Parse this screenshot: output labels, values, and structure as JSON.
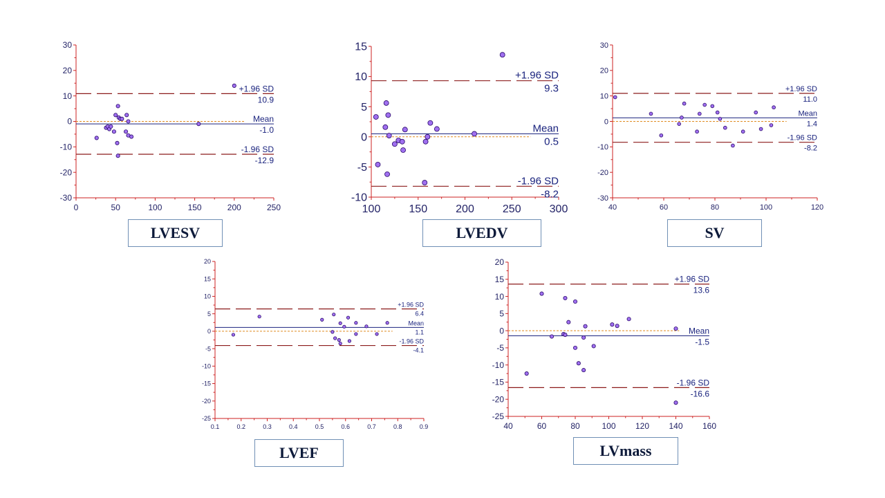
{
  "colors": {
    "axis": "#cc2222",
    "tick_label": "#222266",
    "mean_line": "#1a237e",
    "sd_line": "#8b1a1a",
    "zero_line": "#e08a1e",
    "point_fill": "#a070f0",
    "point_stroke": "#2a0a6a",
    "caption_border": "#6f8fb5"
  },
  "captions": {
    "lvesv": "LVESV",
    "lvedv": "LVEDV",
    "sv": "SV",
    "lvef": "LVEF",
    "lvmass": "LVmass"
  },
  "chart_data": [
    {
      "id": "lvesv",
      "type": "scatter",
      "title": "LVESV",
      "xlim": [
        0,
        250
      ],
      "ylim": [
        -30,
        30
      ],
      "xticks": [
        "0",
        "50",
        "100",
        "150",
        "200",
        "250"
      ],
      "yticks": [
        "-30",
        "-20",
        "-10",
        "0",
        "10",
        "20",
        "30"
      ],
      "reference_lines": {
        "upper": {
          "label": "+1.96 SD",
          "value": 10.9,
          "value_text": "10.9"
        },
        "mean": {
          "label": "Mean",
          "value": -1.0,
          "value_text": "-1.0"
        },
        "lower": {
          "label": "-1.96 SD",
          "value": -12.9,
          "value_text": "-12.9"
        },
        "zero": 0
      },
      "points": [
        {
          "x": 26,
          "y": -6.5
        },
        {
          "x": 38,
          "y": -2.5
        },
        {
          "x": 40,
          "y": -2
        },
        {
          "x": 42,
          "y": -3
        },
        {
          "x": 44,
          "y": -2
        },
        {
          "x": 48,
          "y": -4
        },
        {
          "x": 50,
          "y": 2.5
        },
        {
          "x": 52,
          "y": -8.5
        },
        {
          "x": 53,
          "y": 6
        },
        {
          "x": 54,
          "y": 1.5
        },
        {
          "x": 56,
          "y": 1
        },
        {
          "x": 58,
          "y": 1
        },
        {
          "x": 63,
          "y": -4
        },
        {
          "x": 64,
          "y": 2.5
        },
        {
          "x": 66,
          "y": -5.5
        },
        {
          "x": 66,
          "y": 0
        },
        {
          "x": 70,
          "y": -6
        },
        {
          "x": 53,
          "y": -13.5
        },
        {
          "x": 155,
          "y": -1
        },
        {
          "x": 200,
          "y": 14
        }
      ]
    },
    {
      "id": "lvedv",
      "type": "scatter",
      "title": "LVEDV",
      "xlim": [
        100,
        300
      ],
      "ylim": [
        -10,
        15
      ],
      "xticks": [
        "100",
        "150",
        "200",
        "250",
        "300"
      ],
      "yticks": [
        "-10",
        "-5",
        "0",
        "5",
        "10",
        "15"
      ],
      "reference_lines": {
        "upper": {
          "label": "+1.96 SD",
          "value": 9.3,
          "value_text": "9.3"
        },
        "mean": {
          "label": "Mean",
          "value": 0.5,
          "value_text": "0.5"
        },
        "lower": {
          "label": "-1.96 SD",
          "value": -8.2,
          "value_text": "-8.2"
        },
        "zero": 0
      },
      "points": [
        {
          "x": 105,
          "y": 3.3
        },
        {
          "x": 107,
          "y": -4.6
        },
        {
          "x": 115,
          "y": 1.6
        },
        {
          "x": 116,
          "y": 5.6
        },
        {
          "x": 117,
          "y": -6.2
        },
        {
          "x": 118,
          "y": 3.6
        },
        {
          "x": 119,
          "y": 0.2
        },
        {
          "x": 125,
          "y": -1.2
        },
        {
          "x": 129,
          "y": -0.6
        },
        {
          "x": 133,
          "y": -0.8
        },
        {
          "x": 134,
          "y": -2.2
        },
        {
          "x": 136,
          "y": 1.2
        },
        {
          "x": 157,
          "y": -7.6
        },
        {
          "x": 158,
          "y": -0.8
        },
        {
          "x": 160,
          "y": 0
        },
        {
          "x": 163,
          "y": 2.3
        },
        {
          "x": 170,
          "y": 1.3
        },
        {
          "x": 210,
          "y": 0.5
        },
        {
          "x": 240,
          "y": 13.6
        }
      ]
    },
    {
      "id": "sv",
      "type": "scatter",
      "title": "SV",
      "xlim": [
        40,
        120
      ],
      "ylim": [
        -30,
        30
      ],
      "xticks": [
        "40",
        "60",
        "80",
        "100",
        "120"
      ],
      "yticks": [
        "-30",
        "-20",
        "-10",
        "0",
        "10",
        "20",
        "30"
      ],
      "reference_lines": {
        "upper": {
          "label": "+1.96 SD",
          "value": 11.0,
          "value_text": "11.0"
        },
        "mean": {
          "label": "Mean",
          "value": 1.4,
          "value_text": "1.4"
        },
        "lower": {
          "label": "-1.96 SD",
          "value": -8.2,
          "value_text": "-8.2"
        },
        "zero": 0
      },
      "points": [
        {
          "x": 41,
          "y": 9.5
        },
        {
          "x": 55,
          "y": 3
        },
        {
          "x": 59,
          "y": -5.5
        },
        {
          "x": 66,
          "y": -1
        },
        {
          "x": 67,
          "y": 1.5
        },
        {
          "x": 68,
          "y": 7
        },
        {
          "x": 73,
          "y": -4
        },
        {
          "x": 74,
          "y": 3
        },
        {
          "x": 76,
          "y": 6.5
        },
        {
          "x": 79,
          "y": 6
        },
        {
          "x": 81,
          "y": 3.5
        },
        {
          "x": 82,
          "y": 1
        },
        {
          "x": 84,
          "y": -2.5
        },
        {
          "x": 87,
          "y": -9.5
        },
        {
          "x": 91,
          "y": -4
        },
        {
          "x": 96,
          "y": 3.5
        },
        {
          "x": 98,
          "y": -3
        },
        {
          "x": 102,
          "y": -1.5
        },
        {
          "x": 103,
          "y": 5.5
        }
      ]
    },
    {
      "id": "lvef",
      "type": "scatter",
      "title": "LVEF",
      "xlim": [
        0.1,
        0.9
      ],
      "ylim": [
        -25,
        20
      ],
      "xticks": [
        "0.1",
        "0.2",
        "0.3",
        "0.4",
        "0.5",
        "0.6",
        "0.7",
        "0.8",
        "0.9"
      ],
      "yticks": [
        "-25",
        "-20",
        "-15",
        "-10",
        "-5",
        "0",
        "5",
        "10",
        "15",
        "20"
      ],
      "reference_lines": {
        "upper": {
          "label": "+1.96 SD",
          "value": 6.4,
          "value_text": "6.4"
        },
        "mean": {
          "label": "Mean",
          "value": 1.1,
          "value_text": "1.1"
        },
        "lower": {
          "label": "-1.96 SD",
          "value": -4.1,
          "value_text": "-4.1"
        },
        "zero": 0
      },
      "points": [
        {
          "x": 0.17,
          "y": -1
        },
        {
          "x": 0.27,
          "y": 4.2
        },
        {
          "x": 0.51,
          "y": 3.3
        },
        {
          "x": 0.55,
          "y": -0.2
        },
        {
          "x": 0.555,
          "y": 4.8
        },
        {
          "x": 0.56,
          "y": -2
        },
        {
          "x": 0.575,
          "y": -2.5
        },
        {
          "x": 0.58,
          "y": -3.5
        },
        {
          "x": 0.58,
          "y": 2.3
        },
        {
          "x": 0.595,
          "y": 1.3
        },
        {
          "x": 0.61,
          "y": 3.9
        },
        {
          "x": 0.615,
          "y": -2.8
        },
        {
          "x": 0.64,
          "y": 2.4
        },
        {
          "x": 0.64,
          "y": -0.8
        },
        {
          "x": 0.68,
          "y": 1.4
        },
        {
          "x": 0.72,
          "y": -0.8
        },
        {
          "x": 0.76,
          "y": 2.4
        }
      ]
    },
    {
      "id": "lvmass",
      "type": "scatter",
      "title": "LVmass",
      "xlim": [
        40,
        160
      ],
      "ylim": [
        -25,
        20
      ],
      "xticks": [
        "40",
        "60",
        "80",
        "100",
        "120",
        "140",
        "160"
      ],
      "yticks": [
        "-25",
        "-20",
        "-15",
        "-10",
        "-5",
        "0",
        "5",
        "10",
        "15",
        "20"
      ],
      "reference_lines": {
        "upper": {
          "label": "+1.96 SD",
          "value": 13.6,
          "value_text": "13.6"
        },
        "mean": {
          "label": "Mean",
          "value": -1.5,
          "value_text": "-1.5"
        },
        "lower": {
          "label": "-1.96 SD",
          "value": -16.6,
          "value_text": "-16.6"
        },
        "zero": 0
      },
      "points": [
        {
          "x": 51,
          "y": -12.5
        },
        {
          "x": 60,
          "y": 10.8
        },
        {
          "x": 66,
          "y": -1.7
        },
        {
          "x": 73,
          "y": -1
        },
        {
          "x": 74,
          "y": -1.2
        },
        {
          "x": 74,
          "y": 9.5
        },
        {
          "x": 76,
          "y": 2.5
        },
        {
          "x": 80,
          "y": 8.5
        },
        {
          "x": 80,
          "y": -5
        },
        {
          "x": 82,
          "y": -9.5
        },
        {
          "x": 85,
          "y": -11.5
        },
        {
          "x": 85,
          "y": -2
        },
        {
          "x": 86,
          "y": 1.3
        },
        {
          "x": 91,
          "y": -4.5
        },
        {
          "x": 102,
          "y": 1.8
        },
        {
          "x": 105,
          "y": 1.4
        },
        {
          "x": 112,
          "y": 3.4
        },
        {
          "x": 140,
          "y": 0.6
        },
        {
          "x": 140,
          "y": -21
        }
      ]
    }
  ]
}
